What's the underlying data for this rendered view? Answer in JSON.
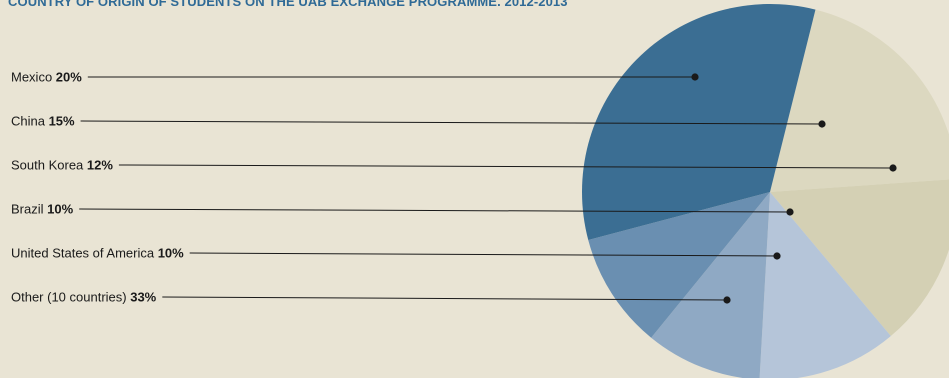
{
  "title": "COUNTRY OF ORIGIN OF STUDENTS ON THE UAB EXCHANGE PROGRAMME. 2012-2013",
  "colors": {
    "background": "#e9e4d4",
    "title": "#2f6a96",
    "label_text": "#1a1a1a",
    "leader_line": "#1a1a1a"
  },
  "chart_data": {
    "type": "pie",
    "title": "COUNTRY OF ORIGIN OF STUDENTS ON THE UAB EXCHANGE PROGRAMME. 2012-2013",
    "slices": [
      {
        "name": "Mexico",
        "value": 20,
        "value_label": "20%",
        "color": "#dcd8c0"
      },
      {
        "name": "China",
        "value": 15,
        "value_label": "15%",
        "color": "#d4d0b4"
      },
      {
        "name": "South Korea",
        "value": 12,
        "value_label": "12%",
        "color": "#b5c5d9"
      },
      {
        "name": "Brazil",
        "value": 10,
        "value_label": "10%",
        "color": "#8fa9c4"
      },
      {
        "name": "United States of America",
        "value": 10,
        "value_label": "10%",
        "color": "#6a8fb1"
      },
      {
        "name": "Other (10 countries)",
        "value": 33,
        "value_label": "33%",
        "color": "#3b6e93"
      }
    ]
  }
}
